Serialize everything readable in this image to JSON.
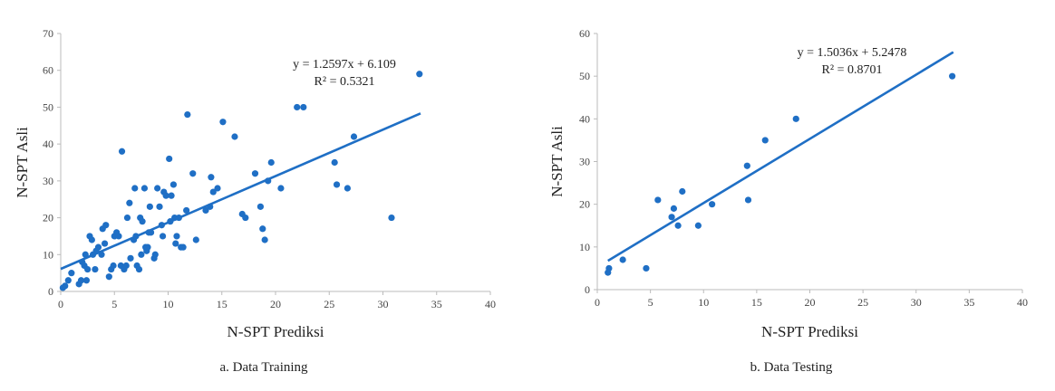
{
  "chart_data": [
    {
      "type": "scatter",
      "caption": "a. Data Training",
      "xlabel": "N-SPT Prediksi",
      "ylabel": "N-SPT Asli",
      "xlim": [
        0,
        40
      ],
      "ylim": [
        0,
        70
      ],
      "xticks": [
        "0",
        "5",
        "10",
        "15",
        "20",
        "25",
        "30",
        "35",
        "40"
      ],
      "yticks": [
        "0",
        "10",
        "20",
        "30",
        "40",
        "50",
        "60",
        "70"
      ],
      "equation": "y = 1.2597x + 6.109",
      "r2": "R² = 0.5321",
      "trendline": {
        "slope": 1.2597,
        "intercept": 6.109,
        "x_range": [
          0,
          33.5
        ]
      },
      "color": "#1f6fc5",
      "points": [
        [
          0.2,
          1
        ],
        [
          0.4,
          1.5
        ],
        [
          0.7,
          3
        ],
        [
          1,
          5
        ],
        [
          1.7,
          2
        ],
        [
          1.9,
          3
        ],
        [
          2,
          8
        ],
        [
          2.2,
          7
        ],
        [
          2.3,
          10
        ],
        [
          2.5,
          6
        ],
        [
          2.4,
          3
        ],
        [
          2.7,
          15
        ],
        [
          2.9,
          14
        ],
        [
          3,
          10
        ],
        [
          3.2,
          6
        ],
        [
          3.3,
          11
        ],
        [
          3.5,
          12
        ],
        [
          3.8,
          10
        ],
        [
          3.9,
          17
        ],
        [
          4.1,
          13
        ],
        [
          4.2,
          18
        ],
        [
          4.5,
          4
        ],
        [
          4.7,
          6
        ],
        [
          4.9,
          7
        ],
        [
          5,
          15
        ],
        [
          5.2,
          16
        ],
        [
          5.4,
          15
        ],
        [
          5.6,
          7
        ],
        [
          5.7,
          38
        ],
        [
          5.9,
          6
        ],
        [
          6.1,
          7
        ],
        [
          6.2,
          20
        ],
        [
          6.4,
          24
        ],
        [
          6.5,
          9
        ],
        [
          6.8,
          14
        ],
        [
          6.9,
          28
        ],
        [
          7,
          15
        ],
        [
          7.1,
          7
        ],
        [
          7.3,
          6
        ],
        [
          7.4,
          20
        ],
        [
          7.5,
          10
        ],
        [
          7.6,
          19
        ],
        [
          7.8,
          28
        ],
        [
          7.9,
          12
        ],
        [
          8,
          11
        ],
        [
          8.1,
          12
        ],
        [
          8.2,
          16
        ],
        [
          8.3,
          23
        ],
        [
          8.4,
          16
        ],
        [
          8.7,
          9
        ],
        [
          8.8,
          10
        ],
        [
          9,
          28
        ],
        [
          9.2,
          23
        ],
        [
          9.4,
          18
        ],
        [
          9.5,
          15
        ],
        [
          9.6,
          27
        ],
        [
          9.8,
          26
        ],
        [
          10.1,
          36
        ],
        [
          10.2,
          19
        ],
        [
          10.3,
          26
        ],
        [
          10.5,
          29
        ],
        [
          10.6,
          20
        ],
        [
          10.7,
          13
        ],
        [
          10.8,
          15
        ],
        [
          11,
          20
        ],
        [
          11.2,
          12
        ],
        [
          11.4,
          12
        ],
        [
          11.7,
          22
        ],
        [
          11.8,
          48
        ],
        [
          12.3,
          32
        ],
        [
          12.6,
          14
        ],
        [
          13.5,
          22
        ],
        [
          13.9,
          23
        ],
        [
          14,
          31
        ],
        [
          14.2,
          27
        ],
        [
          14.6,
          28
        ],
        [
          15.1,
          46
        ],
        [
          16.2,
          42
        ],
        [
          16.9,
          21
        ],
        [
          17.2,
          20
        ],
        [
          18.1,
          32
        ],
        [
          18.6,
          23
        ],
        [
          18.8,
          17
        ],
        [
          19,
          14
        ],
        [
          19.3,
          30
        ],
        [
          19.6,
          35
        ],
        [
          20.5,
          28
        ],
        [
          22,
          50
        ],
        [
          22.6,
          50
        ],
        [
          25.5,
          35
        ],
        [
          25.7,
          29
        ],
        [
          26.7,
          28
        ],
        [
          27.3,
          42
        ],
        [
          30.8,
          20
        ],
        [
          33.4,
          59
        ]
      ]
    },
    {
      "type": "scatter",
      "caption": "b. Data Testing",
      "xlabel": "N-SPT Prediksi",
      "ylabel": "N-SPT Asli",
      "xlim": [
        0,
        40
      ],
      "ylim": [
        0,
        60
      ],
      "xticks": [
        "0",
        "5",
        "10",
        "15",
        "20",
        "25",
        "30",
        "35",
        "40"
      ],
      "yticks": [
        "0",
        "10",
        "20",
        "30",
        "40",
        "50",
        "60"
      ],
      "equation": "y = 1.5036x + 5.2478",
      "r2": "R² = 0.8701",
      "trendline": {
        "slope": 1.5036,
        "intercept": 5.2478,
        "x_range": [
          1,
          33.5
        ]
      },
      "color": "#1f6fc5",
      "points": [
        [
          1,
          4
        ],
        [
          1.1,
          5
        ],
        [
          2.4,
          7
        ],
        [
          4.6,
          5
        ],
        [
          5.7,
          21
        ],
        [
          7,
          17
        ],
        [
          7.2,
          19
        ],
        [
          7.6,
          15
        ],
        [
          8,
          23
        ],
        [
          9.5,
          15
        ],
        [
          10.8,
          20
        ],
        [
          14.1,
          29
        ],
        [
          14.2,
          21
        ],
        [
          15.8,
          35
        ],
        [
          18.7,
          40
        ],
        [
          33.4,
          50
        ]
      ]
    }
  ]
}
